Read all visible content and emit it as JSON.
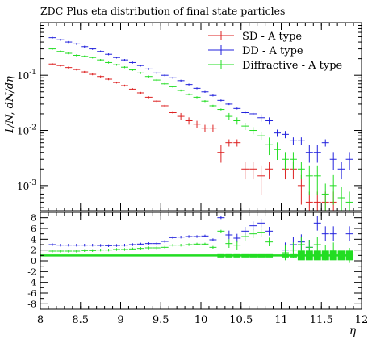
{
  "chart_data": {
    "type": "scatter",
    "title": "ZDC Plus eta distribution of final state particles",
    "xlabel": "η",
    "ylabel": "1/N, dN/dη",
    "x_range": [
      8,
      12
    ],
    "y_range": [
      0.00035,
      0.9
    ],
    "y_scale": "log",
    "ratio_range": [
      -9,
      9
    ],
    "grid": false,
    "legend_position": "top-right",
    "x_ticks": [
      "8",
      "8.5",
      "9",
      "9.5",
      "10",
      "10.5",
      "11",
      "11.5",
      "12"
    ],
    "y_ticks": [
      {
        "value": 0.1,
        "label": "10^{-1}"
      },
      {
        "value": 0.01,
        "label": "10^{-2}"
      },
      {
        "value": 0.001,
        "label": "10^{-3}"
      }
    ],
    "ratio_ticks": [
      "8",
      "6",
      "4",
      "2",
      "0",
      "-2",
      "-4",
      "-6",
      "-8"
    ],
    "bin_width": 0.1,
    "series": [
      {
        "name": "SD - A type",
        "color": "#dd2222",
        "points": [
          [
            8.15,
            0.16
          ],
          [
            8.25,
            0.15
          ],
          [
            8.35,
            0.138
          ],
          [
            8.45,
            0.127
          ],
          [
            8.55,
            0.115
          ],
          [
            8.65,
            0.104
          ],
          [
            8.75,
            0.095
          ],
          [
            8.85,
            0.085
          ],
          [
            8.95,
            0.074
          ],
          [
            9.05,
            0.065
          ],
          [
            9.15,
            0.056
          ],
          [
            9.25,
            0.048
          ],
          [
            9.35,
            0.04
          ],
          [
            9.45,
            0.034
          ],
          [
            9.55,
            0.028
          ],
          [
            9.65,
            0.021
          ],
          [
            9.75,
            0.018
          ],
          [
            9.85,
            0.015
          ],
          [
            9.95,
            0.013
          ],
          [
            10.05,
            0.011
          ],
          [
            10.15,
            0.011
          ],
          [
            10.25,
            0.004
          ],
          [
            10.35,
            0.006
          ],
          [
            10.45,
            0.006
          ],
          [
            10.55,
            0.002
          ],
          [
            10.65,
            0.002
          ],
          [
            10.75,
            0.0015
          ],
          [
            10.85,
            0.002
          ],
          [
            11.05,
            0.002
          ],
          [
            11.15,
            0.002
          ],
          [
            11.25,
            0.001
          ],
          [
            11.35,
            0.0005
          ],
          [
            11.45,
            0.0005
          ],
          [
            11.55,
            0.0005
          ],
          [
            11.65,
            0.0005
          ]
        ]
      },
      {
        "name": "DD - A type",
        "color": "#2222dd",
        "points": [
          [
            8.15,
            0.48
          ],
          [
            8.25,
            0.44
          ],
          [
            8.35,
            0.4
          ],
          [
            8.45,
            0.37
          ],
          [
            8.55,
            0.33
          ],
          [
            8.65,
            0.3
          ],
          [
            8.75,
            0.27
          ],
          [
            8.85,
            0.24
          ],
          [
            8.95,
            0.21
          ],
          [
            9.05,
            0.19
          ],
          [
            9.15,
            0.17
          ],
          [
            9.25,
            0.15
          ],
          [
            9.35,
            0.13
          ],
          [
            9.45,
            0.11
          ],
          [
            9.55,
            0.1
          ],
          [
            9.65,
            0.09
          ],
          [
            9.75,
            0.08
          ],
          [
            9.85,
            0.068
          ],
          [
            9.95,
            0.058
          ],
          [
            10.05,
            0.05
          ],
          [
            10.15,
            0.043
          ],
          [
            10.25,
            0.035
          ],
          [
            10.35,
            0.03
          ],
          [
            10.45,
            0.025
          ],
          [
            10.55,
            0.021
          ],
          [
            10.65,
            0.02
          ],
          [
            10.75,
            0.017
          ],
          [
            10.85,
            0.015
          ],
          [
            10.95,
            0.009
          ],
          [
            11.05,
            0.0085
          ],
          [
            11.15,
            0.0065
          ],
          [
            11.25,
            0.0065
          ],
          [
            11.35,
            0.004
          ],
          [
            11.45,
            0.004
          ],
          [
            11.55,
            0.006
          ],
          [
            11.65,
            0.003
          ],
          [
            11.75,
            0.002
          ],
          [
            11.85,
            0.003
          ]
        ]
      },
      {
        "name": "Diffractive - A type",
        "color": "#22dd22",
        "points": [
          [
            8.15,
            0.3
          ],
          [
            8.25,
            0.27
          ],
          [
            8.35,
            0.25
          ],
          [
            8.45,
            0.23
          ],
          [
            8.55,
            0.22
          ],
          [
            8.65,
            0.21
          ],
          [
            8.75,
            0.19
          ],
          [
            8.85,
            0.17
          ],
          [
            8.95,
            0.155
          ],
          [
            9.05,
            0.14
          ],
          [
            9.15,
            0.125
          ],
          [
            9.25,
            0.11
          ],
          [
            9.35,
            0.095
          ],
          [
            9.45,
            0.082
          ],
          [
            9.55,
            0.07
          ],
          [
            9.65,
            0.062
          ],
          [
            9.75,
            0.053
          ],
          [
            9.85,
            0.045
          ],
          [
            9.95,
            0.04
          ],
          [
            10.05,
            0.034
          ],
          [
            10.15,
            0.028
          ],
          [
            10.25,
            0.024
          ],
          [
            10.35,
            0.018
          ],
          [
            10.45,
            0.015
          ],
          [
            10.55,
            0.012
          ],
          [
            10.65,
            0.01
          ],
          [
            10.75,
            0.008
          ],
          [
            10.85,
            0.0055
          ],
          [
            10.95,
            0.0045
          ],
          [
            11.05,
            0.003
          ],
          [
            11.15,
            0.003
          ],
          [
            11.25,
            0.002
          ],
          [
            11.35,
            0.0015
          ],
          [
            11.45,
            0.0015
          ],
          [
            11.55,
            0.0007
          ],
          [
            11.65,
            0.001
          ],
          [
            11.75,
            0.0006
          ],
          [
            11.85,
            0.0005
          ]
        ]
      }
    ],
    "ratio_series": [
      {
        "name": "DD - A type",
        "color": "#2222dd",
        "points": [
          [
            8.15,
            3
          ],
          [
            8.25,
            2.9
          ],
          [
            8.35,
            2.9
          ],
          [
            8.45,
            2.9
          ],
          [
            8.55,
            2.9
          ],
          [
            8.65,
            2.9
          ],
          [
            8.75,
            2.85
          ],
          [
            8.85,
            2.8
          ],
          [
            8.95,
            2.85
          ],
          [
            9.05,
            2.9
          ],
          [
            9.15,
            3
          ],
          [
            9.25,
            3.1
          ],
          [
            9.35,
            3.2
          ],
          [
            9.45,
            3.2
          ],
          [
            9.55,
            3.6
          ],
          [
            9.65,
            4.3
          ],
          [
            9.75,
            4.4
          ],
          [
            9.85,
            4.5
          ],
          [
            9.95,
            4.5
          ],
          [
            10.05,
            4.6
          ],
          [
            10.15,
            3.9
          ],
          [
            10.25,
            8
          ],
          [
            10.35,
            4.8
          ],
          [
            10.45,
            4.2
          ],
          [
            10.55,
            5.5
          ],
          [
            10.65,
            6.5
          ],
          [
            10.75,
            7
          ],
          [
            10.85,
            5.5
          ],
          [
            11.05,
            2
          ],
          [
            11.15,
            3
          ],
          [
            11.25,
            3.5
          ],
          [
            11.35,
            2.5
          ],
          [
            11.45,
            7
          ],
          [
            11.55,
            5
          ],
          [
            11.65,
            5
          ],
          [
            11.85,
            5
          ]
        ]
      },
      {
        "name": "Diffractive - A type",
        "color": "#22dd22",
        "points": [
          [
            8.15,
            1.8
          ],
          [
            8.25,
            1.8
          ],
          [
            8.35,
            1.8
          ],
          [
            8.45,
            1.8
          ],
          [
            8.55,
            1.9
          ],
          [
            8.65,
            1.9
          ],
          [
            8.75,
            2
          ],
          [
            8.85,
            2
          ],
          [
            8.95,
            2.1
          ],
          [
            9.05,
            2.1
          ],
          [
            9.15,
            2.2
          ],
          [
            9.25,
            2.3
          ],
          [
            9.35,
            2.4
          ],
          [
            9.45,
            2.4
          ],
          [
            9.55,
            2.5
          ],
          [
            9.65,
            2.9
          ],
          [
            9.75,
            2.9
          ],
          [
            9.85,
            3
          ],
          [
            9.95,
            3.1
          ],
          [
            10.05,
            3.1
          ],
          [
            10.15,
            2.5
          ],
          [
            10.25,
            5.5
          ],
          [
            10.35,
            3.2
          ],
          [
            10.45,
            2.9
          ],
          [
            10.55,
            4.5
          ],
          [
            10.65,
            5
          ],
          [
            10.75,
            5.3
          ],
          [
            10.85,
            3.5
          ],
          [
            11.05,
            1.5
          ],
          [
            11.15,
            2
          ],
          [
            11.25,
            3
          ],
          [
            11.35,
            2.5
          ],
          [
            11.45,
            3
          ],
          [
            11.55,
            1.5
          ],
          [
            11.65,
            2
          ],
          [
            11.85,
            1
          ]
        ]
      },
      {
        "name": "SD - A type",
        "color": "#dd2222",
        "points": [
          [
            8.15,
            1
          ],
          [
            8.25,
            1
          ],
          [
            8.35,
            1
          ],
          [
            8.45,
            1
          ],
          [
            8.55,
            1
          ],
          [
            8.65,
            1
          ],
          [
            8.75,
            1
          ],
          [
            8.85,
            1
          ],
          [
            8.95,
            1
          ],
          [
            9.05,
            1
          ],
          [
            9.15,
            1
          ],
          [
            9.25,
            1
          ],
          [
            9.35,
            1
          ],
          [
            9.45,
            1
          ],
          [
            9.55,
            1
          ],
          [
            9.65,
            1
          ],
          [
            9.75,
            1
          ],
          [
            9.85,
            1
          ],
          [
            9.95,
            1
          ],
          [
            10.05,
            1
          ],
          [
            10.15,
            1
          ],
          [
            10.25,
            1
          ],
          [
            10.35,
            1
          ],
          [
            10.45,
            1
          ],
          [
            10.55,
            1
          ],
          [
            10.65,
            1
          ],
          [
            10.75,
            1
          ],
          [
            10.85,
            1
          ],
          [
            11.05,
            1
          ],
          [
            11.15,
            1
          ],
          [
            11.25,
            1
          ],
          [
            11.35,
            1
          ],
          [
            11.45,
            1
          ],
          [
            11.55,
            1
          ],
          [
            11.65,
            1
          ],
          [
            11.75,
            1
          ],
          [
            11.85,
            1
          ]
        ]
      }
    ]
  }
}
